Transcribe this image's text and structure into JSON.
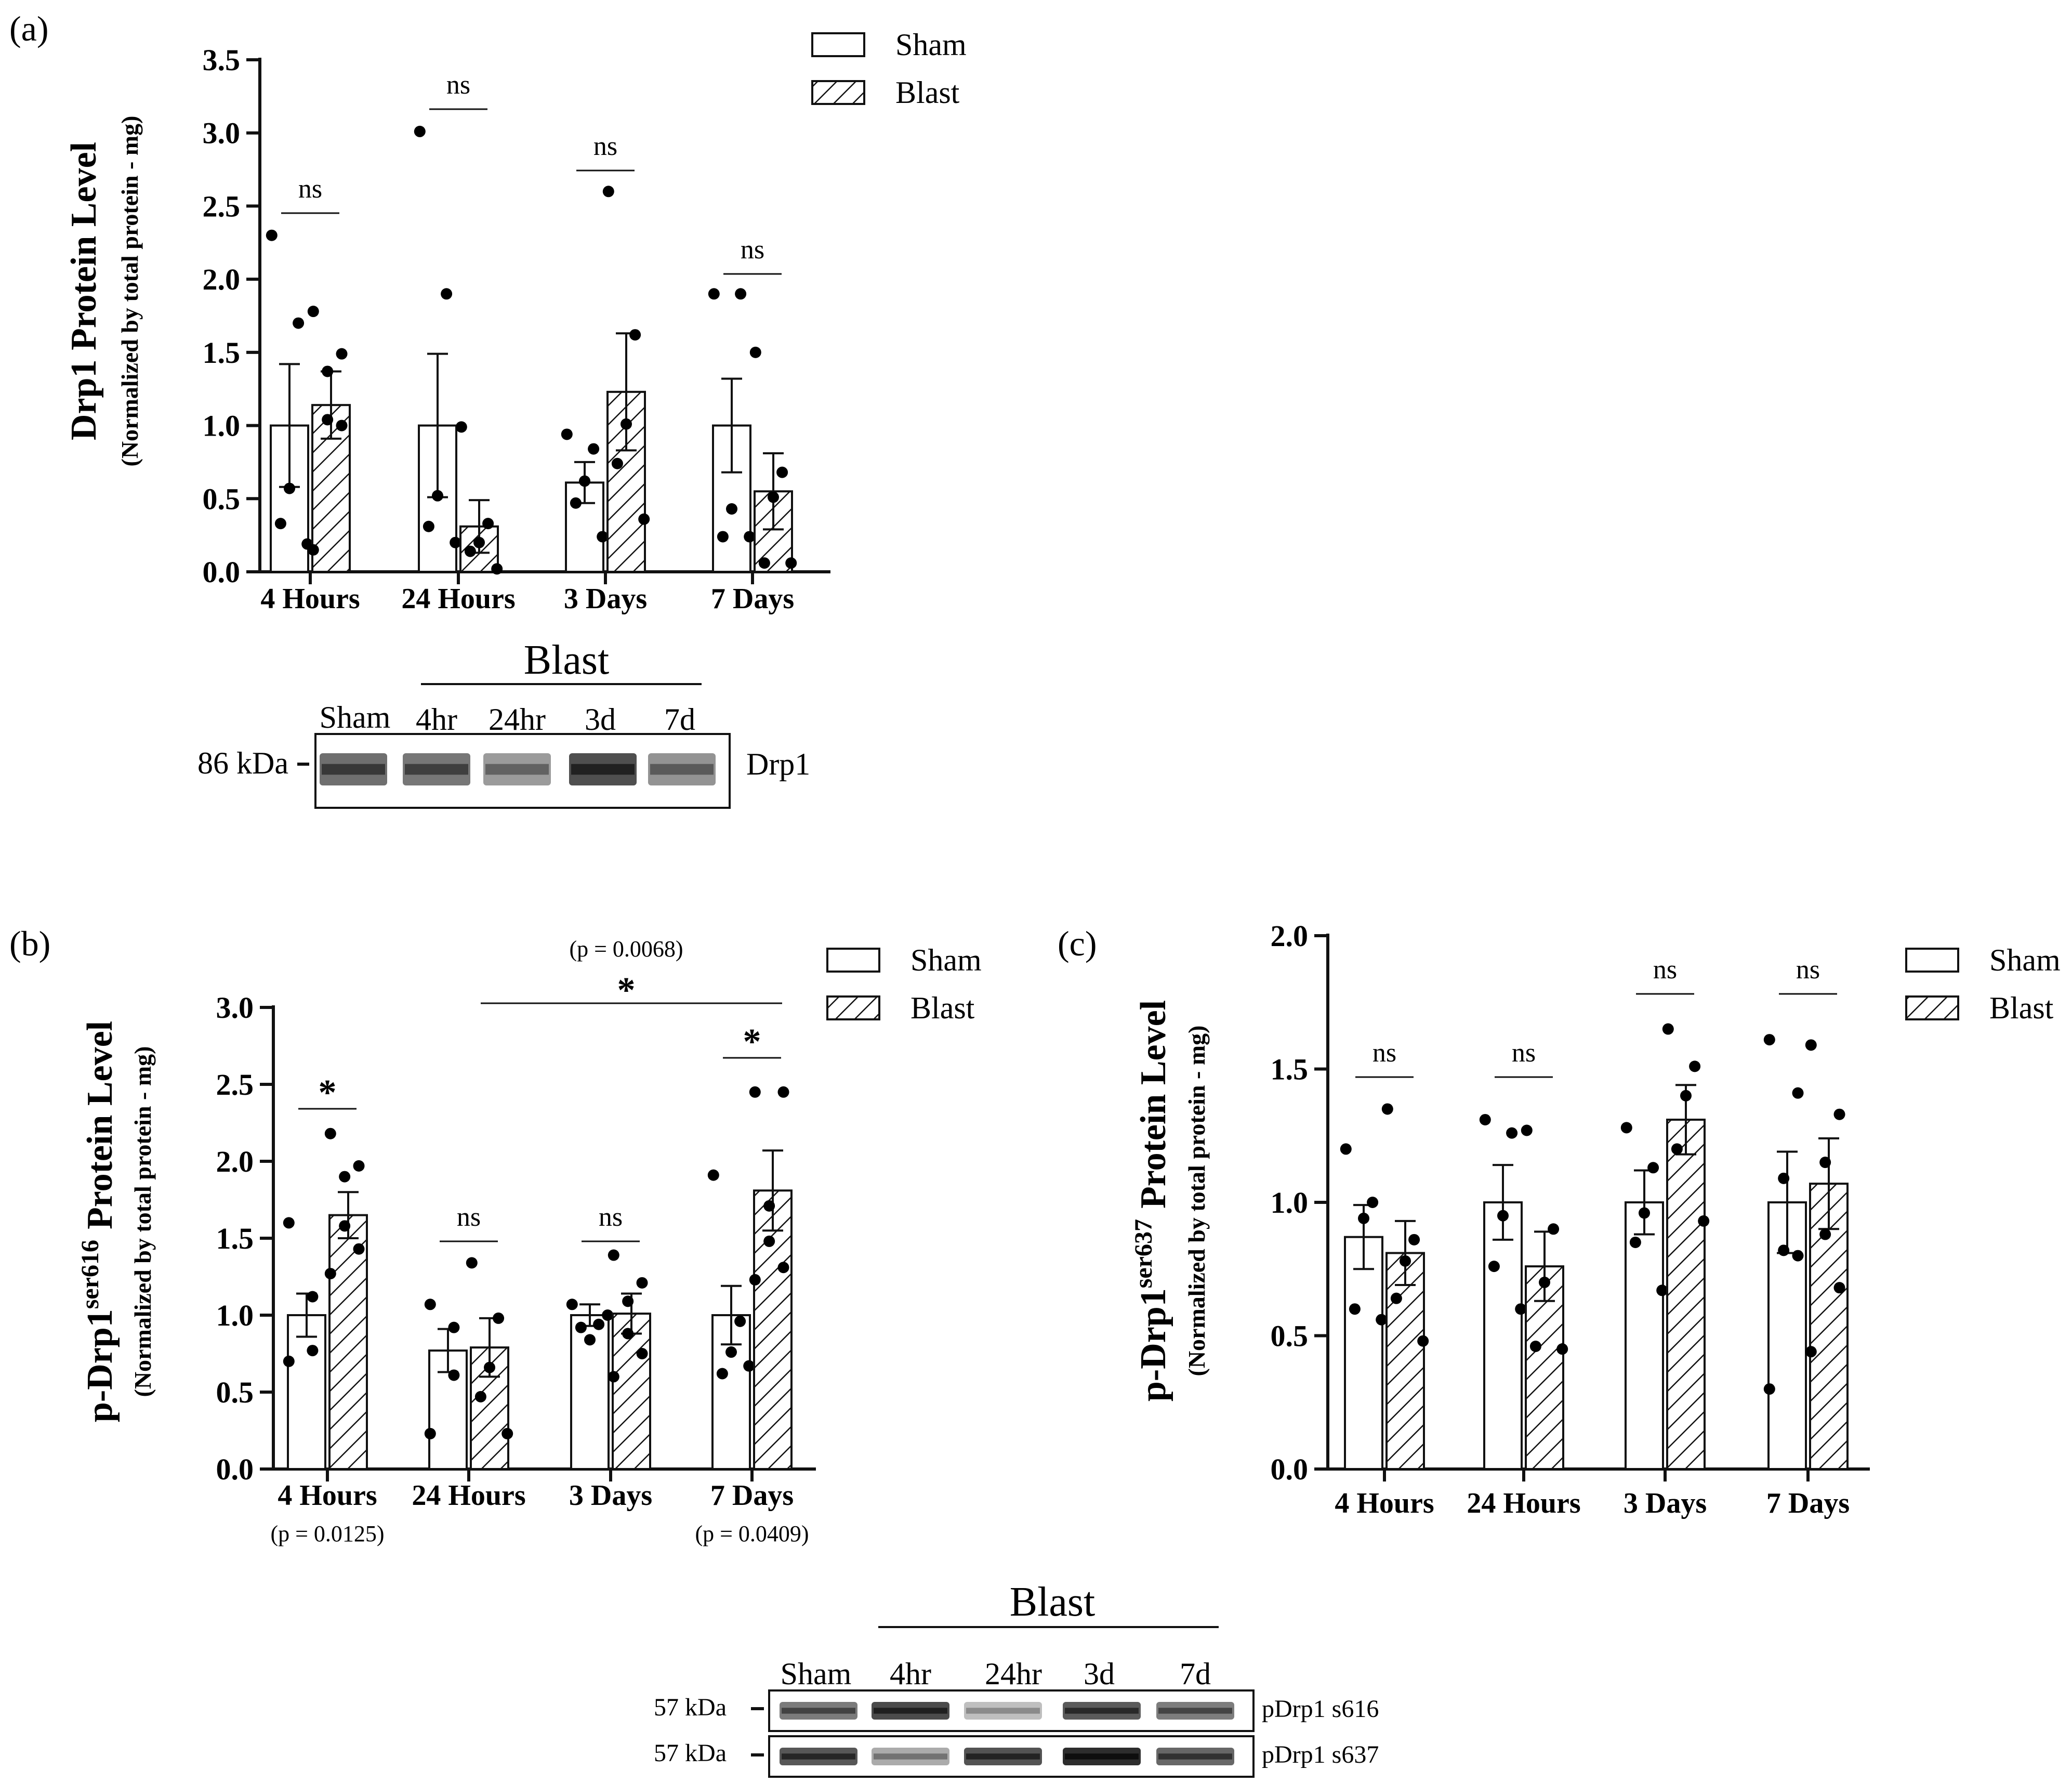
{
  "chart_data": [
    {
      "panel_label": "(a)",
      "type": "bar",
      "ylabel": "Drp1 Protein Level",
      "ylabel_sub": "(Normalized by total protein - mg)",
      "ylim": [
        0,
        3.5
      ],
      "yticks": [
        "0.0",
        "0.5",
        "1.0",
        "1.5",
        "2.0",
        "2.5",
        "3.0",
        "3.5"
      ],
      "categories": [
        "4 Hours",
        "24 Hours",
        "3 Days",
        "7 Days"
      ],
      "legend": [
        {
          "name": "Sham",
          "pattern": "open"
        },
        {
          "name": "Blast",
          "pattern": "hatched"
        }
      ],
      "series": [
        {
          "name": "Sham",
          "values": [
            1.0,
            1.0,
            0.61,
            1.0
          ],
          "sem": [
            0.42,
            0.49,
            0.14,
            0.32
          ],
          "points": [
            [
              2.3,
              1.7,
              0.57,
              0.33,
              0.19
            ],
            [
              3.01,
              1.9,
              0.52,
              0.31,
              0.2
            ],
            [
              0.94,
              0.84,
              0.62,
              0.47,
              0.24
            ],
            [
              1.9,
              1.9,
              0.43,
              0.24,
              0.24
            ]
          ]
        },
        {
          "name": "Blast",
          "values": [
            1.14,
            0.31,
            1.23,
            0.55
          ],
          "sem": [
            0.23,
            0.18,
            0.4,
            0.26
          ],
          "points": [
            [
              1.78,
              1.49,
              1.37,
              1.04,
              1.0,
              0.15
            ],
            [
              0.99,
              0.33,
              0.2,
              0.14,
              0.02
            ],
            [
              2.6,
              1.62,
              1.01,
              0.74,
              0.36
            ],
            [
              1.5,
              0.68,
              0.51,
              0.06,
              0.06
            ]
          ]
        }
      ],
      "significance": [
        "ns",
        "ns",
        "ns",
        "ns"
      ]
    },
    {
      "panel_label": "(b)",
      "type": "bar",
      "ylabel_main": "p-Drp1",
      "ylabel_sup": "ser616",
      "ylabel_tail": "Protein Level",
      "ylabel_sub": "(Normalized by total protein - mg)",
      "ylim": [
        0,
        3.0
      ],
      "yticks": [
        "0.0",
        "0.5",
        "1.0",
        "1.5",
        "2.0",
        "2.5",
        "3.0"
      ],
      "categories": [
        "4 Hours",
        "24 Hours",
        "3 Days",
        "7 Days"
      ],
      "legend": [
        {
          "name": "Sham",
          "pattern": "open"
        },
        {
          "name": "Blast",
          "pattern": "hatched"
        }
      ],
      "series": [
        {
          "name": "Sham",
          "values": [
            1.0,
            0.77,
            1.0,
            1.0
          ],
          "sem": [
            0.14,
            0.14,
            0.07,
            0.19
          ],
          "points": [
            [
              1.6,
              1.12,
              0.77,
              0.7
            ],
            [
              1.07,
              0.92,
              0.61,
              0.23
            ],
            [
              1.07,
              0.94,
              0.84,
              0.92,
              1.0
            ],
            [
              1.91,
              0.96,
              0.76,
              0.62,
              0.67
            ]
          ]
        },
        {
          "name": "Blast",
          "values": [
            1.65,
            0.79,
            1.01,
            1.81
          ],
          "sem": [
            0.15,
            0.19,
            0.13,
            0.26
          ],
          "points": [
            [
              2.18,
              1.97,
              1.9,
              1.58,
              1.43,
              1.27
            ],
            [
              1.34,
              0.98,
              0.66,
              0.47,
              0.23
            ],
            [
              1.39,
              1.21,
              1.09,
              0.88,
              0.75,
              0.6
            ],
            [
              2.45,
              2.45,
              1.71,
              1.48,
              1.31,
              1.23
            ]
          ]
        }
      ],
      "significance": [
        "*",
        "ns",
        "ns",
        "*"
      ],
      "overall_bracket": {
        "label": "*",
        "p": "(p = 0.0068)"
      },
      "pvalue_notes": [
        "(p = 0.0125)",
        "",
        "",
        "(p = 0.0409)"
      ]
    },
    {
      "panel_label": "(c)",
      "type": "bar",
      "ylabel_main": "p-Drp1",
      "ylabel_sup": "ser637",
      "ylabel_tail": "Protein Level",
      "ylabel_sub": "(Normalized by total protein - mg)",
      "ylim": [
        0,
        2.0
      ],
      "yticks": [
        "0.0",
        "0.5",
        "1.0",
        "1.5",
        "2.0"
      ],
      "categories": [
        "4 Hours",
        "24 Hours",
        "3 Days",
        "7 Days"
      ],
      "legend": [
        {
          "name": "Sham",
          "pattern": "open"
        },
        {
          "name": "Blast",
          "pattern": "hatched"
        }
      ],
      "series": [
        {
          "name": "Sham",
          "values": [
            0.87,
            1.0,
            1.0,
            1.0
          ],
          "sem": [
            0.12,
            0.14,
            0.12,
            0.19
          ],
          "points": [
            [
              1.2,
              1.0,
              0.94,
              0.6,
              0.56
            ],
            [
              1.31,
              1.26,
              0.95,
              0.76,
              0.6
            ],
            [
              1.28,
              1.13,
              0.96,
              0.85,
              0.67
            ],
            [
              1.61,
              1.41,
              1.09,
              0.82,
              0.8,
              0.3
            ]
          ]
        },
        {
          "name": "Blast",
          "values": [
            0.81,
            0.76,
            1.31,
            1.07
          ],
          "sem": [
            0.12,
            0.13,
            0.13,
            0.17
          ],
          "points": [
            [
              1.35,
              0.86,
              0.78,
              0.64,
              0.48
            ],
            [
              1.27,
              0.9,
              0.7,
              0.46,
              0.45
            ],
            [
              1.65,
              1.51,
              1.4,
              1.2,
              0.93
            ],
            [
              1.59,
              1.33,
              1.15,
              0.88,
              0.68,
              0.44
            ]
          ]
        }
      ],
      "significance": [
        "ns",
        "ns",
        "ns",
        "ns"
      ]
    }
  ],
  "blots": [
    {
      "group_label": "Blast",
      "lanes": [
        "Sham",
        "4hr",
        "24hr",
        "3d",
        "7d"
      ],
      "marker": "86 kDa",
      "rows": [
        {
          "label": "Drp1",
          "band_darkness": [
            0.62,
            0.58,
            0.4,
            0.78,
            0.44
          ]
        }
      ]
    },
    {
      "group_label": "Blast",
      "lanes": [
        "Sham",
        "4hr",
        "24hr",
        "3d",
        "7d"
      ],
      "rows": [
        {
          "marker": "57 kDa",
          "label": "pDrp1 s616",
          "band_darkness": [
            0.56,
            0.8,
            0.22,
            0.72,
            0.55
          ]
        },
        {
          "marker": "57 kDa",
          "label": "pDrp1 s637",
          "band_darkness": [
            0.74,
            0.32,
            0.76,
            0.95,
            0.66
          ]
        }
      ]
    }
  ]
}
